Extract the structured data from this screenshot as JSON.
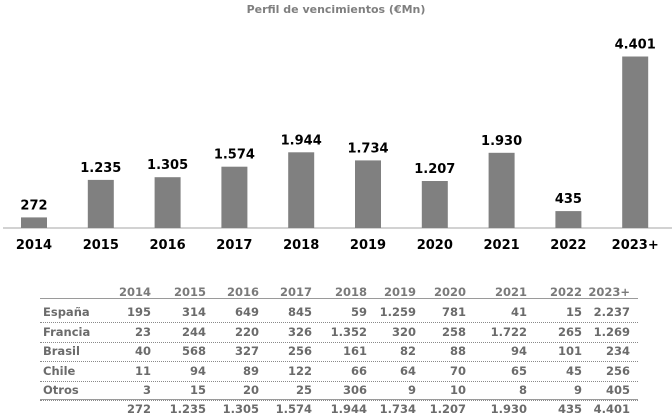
{
  "chart_data": {
    "type": "bar",
    "title": "Perfil de vencimientos (€Mn)",
    "categories": [
      "2014",
      "2015",
      "2016",
      "2017",
      "2018",
      "2019",
      "2020",
      "2021",
      "2022",
      "2023+"
    ],
    "values": [
      272,
      1235,
      1305,
      1574,
      1944,
      1734,
      1207,
      1930,
      435,
      4401
    ],
    "value_labels": [
      "272",
      "1.235",
      "1.305",
      "1.574",
      "1.944",
      "1.734",
      "1.207",
      "1.930",
      "435",
      "4.401"
    ],
    "ylim": [
      0,
      4800
    ],
    "grid": false,
    "bar_color": "#808080",
    "axis_color": "#a6a6a6"
  },
  "table": {
    "columns": [
      "2014",
      "2015",
      "2016",
      "2017",
      "2018",
      "2019",
      "2020",
      "2021",
      "2022",
      "2023+"
    ],
    "rows": [
      {
        "name": "España",
        "values": [
          "195",
          "314",
          "649",
          "845",
          "59",
          "1.259",
          "781",
          "41",
          "15",
          "2.237"
        ]
      },
      {
        "name": "Francia",
        "values": [
          "23",
          "244",
          "220",
          "326",
          "1.352",
          "320",
          "258",
          "1.722",
          "265",
          "1.269"
        ]
      },
      {
        "name": "Brasil",
        "values": [
          "40",
          "568",
          "327",
          "256",
          "161",
          "82",
          "88",
          "94",
          "101",
          "234"
        ]
      },
      {
        "name": "Chile",
        "values": [
          "11",
          "94",
          "89",
          "122",
          "66",
          "64",
          "70",
          "65",
          "45",
          "256"
        ]
      },
      {
        "name": "Otros",
        "values": [
          "3",
          "15",
          "20",
          "25",
          "306",
          "9",
          "10",
          "8",
          "9",
          "405"
        ]
      }
    ],
    "totals": [
      "272",
      "1.235",
      "1.305",
      "1.574",
      "1.944",
      "1.734",
      "1.207",
      "1.930",
      "435",
      "4.401"
    ]
  }
}
